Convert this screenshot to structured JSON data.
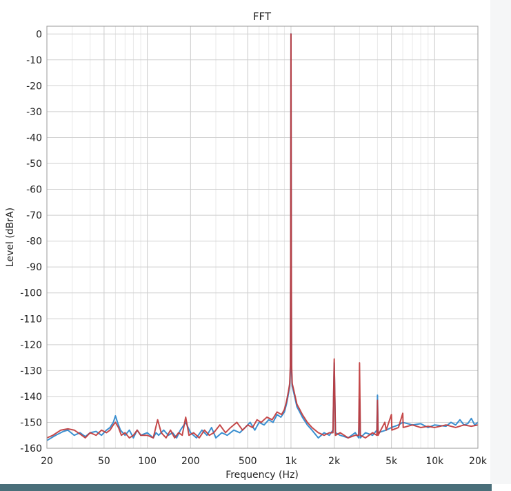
{
  "chart_data": {
    "type": "line",
    "title": "FFT",
    "xlabel": "Frequency (Hz)",
    "ylabel": "Level (dBrA)",
    "xscale": "log",
    "xlim": [
      20,
      20000
    ],
    "ylim": [
      -160,
      3
    ],
    "grid": true,
    "x_ticks": [
      {
        "value": 20,
        "label": "20"
      },
      {
        "value": 50,
        "label": "50"
      },
      {
        "value": 100,
        "label": "100"
      },
      {
        "value": 200,
        "label": "200"
      },
      {
        "value": 500,
        "label": "500"
      },
      {
        "value": 1000,
        "label": "1k"
      },
      {
        "value": 2000,
        "label": "2k"
      },
      {
        "value": 5000,
        "label": "5k"
      },
      {
        "value": 10000,
        "label": "10k"
      },
      {
        "value": 20000,
        "label": "20k"
      }
    ],
    "y_ticks": [
      {
        "value": 0,
        "label": "0"
      },
      {
        "value": -10,
        "label": "-10"
      },
      {
        "value": -20,
        "label": "-20"
      },
      {
        "value": -30,
        "label": "-30"
      },
      {
        "value": -40,
        "label": "-40"
      },
      {
        "value": -50,
        "label": "-50"
      },
      {
        "value": -60,
        "label": "-60"
      },
      {
        "value": -70,
        "label": "-70"
      },
      {
        "value": -80,
        "label": "-80"
      },
      {
        "value": -90,
        "label": "-90"
      },
      {
        "value": -100,
        "label": "-100"
      },
      {
        "value": -110,
        "label": "-110"
      },
      {
        "value": -120,
        "label": "-120"
      },
      {
        "value": -130,
        "label": "-130"
      },
      {
        "value": -140,
        "label": "-140"
      },
      {
        "value": -150,
        "label": "-150"
      },
      {
        "value": -160,
        "label": "-160"
      }
    ],
    "series": [
      {
        "color": "#3a8fd0",
        "points": [
          [
            20,
            -157
          ],
          [
            23,
            -155
          ],
          [
            26,
            -153.5
          ],
          [
            28,
            -153
          ],
          [
            31,
            -155
          ],
          [
            34,
            -154
          ],
          [
            37,
            -155.5
          ],
          [
            40,
            -154
          ],
          [
            44,
            -153.5
          ],
          [
            48,
            -155
          ],
          [
            52,
            -153
          ],
          [
            55,
            -152
          ],
          [
            58,
            -150
          ],
          [
            60,
            -147.5
          ],
          [
            62,
            -150
          ],
          [
            65,
            -153
          ],
          [
            70,
            -155
          ],
          [
            75,
            -153
          ],
          [
            80,
            -156
          ],
          [
            85,
            -153
          ],
          [
            90,
            -155
          ],
          [
            100,
            -154
          ],
          [
            110,
            -156
          ],
          [
            115,
            -154
          ],
          [
            120,
            -155
          ],
          [
            130,
            -153
          ],
          [
            140,
            -155
          ],
          [
            150,
            -154
          ],
          [
            160,
            -156
          ],
          [
            170,
            -153
          ],
          [
            185,
            -150
          ],
          [
            200,
            -154
          ],
          [
            220,
            -156
          ],
          [
            240,
            -153
          ],
          [
            260,
            -155
          ],
          [
            280,
            -152
          ],
          [
            300,
            -156
          ],
          [
            330,
            -154
          ],
          [
            360,
            -155
          ],
          [
            400,
            -153
          ],
          [
            440,
            -154
          ],
          [
            480,
            -152
          ],
          [
            520,
            -150
          ],
          [
            560,
            -153
          ],
          [
            600,
            -150
          ],
          [
            650,
            -151
          ],
          [
            700,
            -149
          ],
          [
            750,
            -150
          ],
          [
            800,
            -147
          ],
          [
            850,
            -148
          ],
          [
            900,
            -146
          ],
          [
            930,
            -143
          ],
          [
            960,
            -139
          ],
          [
            980,
            -136
          ],
          [
            990,
            -130
          ],
          [
            995,
            -90
          ],
          [
            1000,
            0
          ],
          [
            1005,
            -90
          ],
          [
            1010,
            -130
          ],
          [
            1020,
            -136
          ],
          [
            1040,
            -138
          ],
          [
            1070,
            -141
          ],
          [
            1100,
            -144
          ],
          [
            1150,
            -146
          ],
          [
            1200,
            -148
          ],
          [
            1300,
            -151
          ],
          [
            1400,
            -153
          ],
          [
            1550,
            -156
          ],
          [
            1700,
            -154
          ],
          [
            1850,
            -155
          ],
          [
            1960,
            -153
          ],
          [
            2000,
            -127
          ],
          [
            2040,
            -154
          ],
          [
            2200,
            -155
          ],
          [
            2500,
            -156
          ],
          [
            2800,
            -154
          ],
          [
            2960,
            -156
          ],
          [
            3000,
            -141
          ],
          [
            3040,
            -156
          ],
          [
            3300,
            -154
          ],
          [
            3700,
            -155
          ],
          [
            3960,
            -153
          ],
          [
            4000,
            -139.5
          ],
          [
            4040,
            -154
          ],
          [
            4600,
            -153
          ],
          [
            5000,
            -152
          ],
          [
            5600,
            -151
          ],
          [
            6000,
            -150
          ],
          [
            7000,
            -151
          ],
          [
            8000,
            -150.5
          ],
          [
            9000,
            -152
          ],
          [
            10000,
            -151
          ],
          [
            12000,
            -151.5
          ],
          [
            13000,
            -150
          ],
          [
            14000,
            -151
          ],
          [
            15000,
            -149
          ],
          [
            16000,
            -151
          ],
          [
            17000,
            -150.5
          ],
          [
            18000,
            -148.5
          ],
          [
            19000,
            -151
          ],
          [
            20000,
            -150
          ]
        ]
      },
      {
        "color": "#c0393b",
        "points": [
          [
            20,
            -156
          ],
          [
            22,
            -155
          ],
          [
            25,
            -153
          ],
          [
            28,
            -152.5
          ],
          [
            31,
            -153
          ],
          [
            34,
            -154.5
          ],
          [
            37,
            -156
          ],
          [
            40,
            -154
          ],
          [
            44,
            -155
          ],
          [
            48,
            -153
          ],
          [
            52,
            -154
          ],
          [
            55,
            -153
          ],
          [
            58,
            -151
          ],
          [
            60,
            -150
          ],
          [
            63,
            -152
          ],
          [
            66,
            -155
          ],
          [
            70,
            -154
          ],
          [
            75,
            -156
          ],
          [
            80,
            -155
          ],
          [
            85,
            -153
          ],
          [
            90,
            -155
          ],
          [
            100,
            -155
          ],
          [
            110,
            -156
          ],
          [
            118,
            -149
          ],
          [
            125,
            -154
          ],
          [
            135,
            -156
          ],
          [
            145,
            -153
          ],
          [
            155,
            -156
          ],
          [
            165,
            -154
          ],
          [
            175,
            -155
          ],
          [
            185,
            -148
          ],
          [
            195,
            -155
          ],
          [
            210,
            -154
          ],
          [
            230,
            -156
          ],
          [
            250,
            -153
          ],
          [
            270,
            -155
          ],
          [
            290,
            -154
          ],
          [
            320,
            -151
          ],
          [
            350,
            -154
          ],
          [
            380,
            -152
          ],
          [
            420,
            -150
          ],
          [
            460,
            -153
          ],
          [
            500,
            -151
          ],
          [
            540,
            -152
          ],
          [
            580,
            -149
          ],
          [
            620,
            -150
          ],
          [
            680,
            -148
          ],
          [
            740,
            -149
          ],
          [
            800,
            -146
          ],
          [
            860,
            -147
          ],
          [
            900,
            -145
          ],
          [
            930,
            -142
          ],
          [
            960,
            -138
          ],
          [
            980,
            -135
          ],
          [
            990,
            -128
          ],
          [
            995,
            -88
          ],
          [
            1000,
            0
          ],
          [
            1005,
            -88
          ],
          [
            1010,
            -128
          ],
          [
            1020,
            -135
          ],
          [
            1040,
            -137
          ],
          [
            1070,
            -140
          ],
          [
            1100,
            -143
          ],
          [
            1150,
            -145
          ],
          [
            1200,
            -147
          ],
          [
            1300,
            -150
          ],
          [
            1400,
            -152
          ],
          [
            1550,
            -154
          ],
          [
            1700,
            -155
          ],
          [
            1850,
            -154
          ],
          [
            1960,
            -154
          ],
          [
            2000,
            -125.5
          ],
          [
            2040,
            -155
          ],
          [
            2200,
            -154
          ],
          [
            2500,
            -156
          ],
          [
            2800,
            -155
          ],
          [
            2960,
            -155
          ],
          [
            3000,
            -127
          ],
          [
            3040,
            -155
          ],
          [
            3300,
            -156
          ],
          [
            3700,
            -154
          ],
          [
            3960,
            -155
          ],
          [
            4000,
            -141.5
          ],
          [
            4040,
            -155
          ],
          [
            4500,
            -150
          ],
          [
            4600,
            -153
          ],
          [
            5000,
            -147
          ],
          [
            5040,
            -153
          ],
          [
            5600,
            -152
          ],
          [
            6000,
            -146.5
          ],
          [
            6040,
            -152
          ],
          [
            7000,
            -151
          ],
          [
            8000,
            -152
          ],
          [
            9000,
            -151.5
          ],
          [
            10000,
            -152
          ],
          [
            12000,
            -151
          ],
          [
            14000,
            -152
          ],
          [
            16000,
            -151
          ],
          [
            18000,
            -151.5
          ],
          [
            20000,
            -151
          ]
        ]
      }
    ]
  }
}
